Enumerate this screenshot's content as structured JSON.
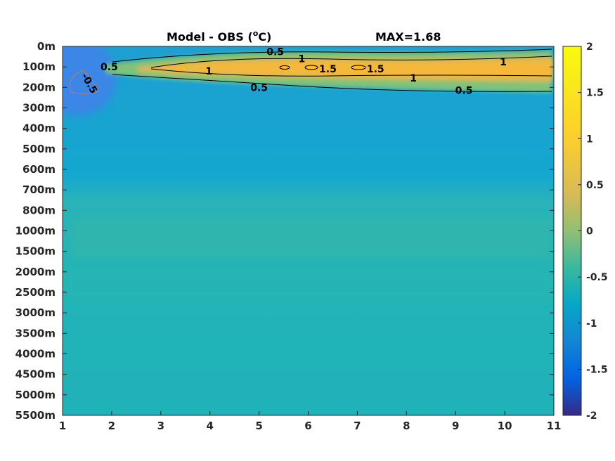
{
  "chart_data": {
    "type": "heatmap",
    "title": "Model - OBS (°C)",
    "title_base": "Model - OBS (",
    "title_unit": "o",
    "title_tail": "C)",
    "max_label": "MAX=1.68",
    "x_ticks": [
      "1",
      "2",
      "3",
      "4",
      "5",
      "6",
      "7",
      "8",
      "9",
      "10",
      "11"
    ],
    "y_ticks": [
      "0m",
      "100m",
      "200m",
      "300m",
      "400m",
      "500m",
      "600m",
      "700m",
      "800m",
      "1000m",
      "1500m",
      "2000m",
      "2500m",
      "3000m",
      "3500m",
      "4000m",
      "4500m",
      "5000m",
      "5500m"
    ],
    "xlim": [
      1,
      11
    ],
    "colorbar": {
      "colormap": "parula",
      "range": [
        -2,
        2
      ],
      "ticks": [
        "2",
        "1.5",
        "1",
        "0.5",
        "0",
        "-0.5",
        "-1",
        "-1.5",
        "-2"
      ]
    },
    "contour_labels": [
      {
        "text": "0.5",
        "x": 1.95,
        "y_index": 1.0
      },
      {
        "text": "0.5",
        "x": 5.33,
        "y_index": 0.25
      },
      {
        "text": "1",
        "x": 5.87,
        "y_index": 0.6
      },
      {
        "text": "1",
        "x": 3.98,
        "y_index": 1.2
      },
      {
        "text": "1.5",
        "x": 6.4,
        "y_index": 1.1
      },
      {
        "text": "1.5",
        "x": 7.37,
        "y_index": 1.1
      },
      {
        "text": "1",
        "x": 8.14,
        "y_index": 1.55
      },
      {
        "text": "1",
        "x": 9.97,
        "y_index": 0.75
      },
      {
        "text": "0.5",
        "x": 5.0,
        "y_index": 2.0
      },
      {
        "text": "0.5",
        "x": 9.17,
        "y_index": 2.15
      },
      {
        "text": "-0.5",
        "x": 1.55,
        "y_index": 1.8
      }
    ]
  }
}
